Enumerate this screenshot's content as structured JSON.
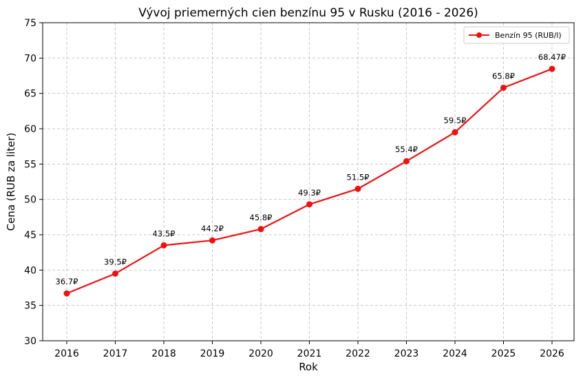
{
  "chart_data": {
    "type": "line",
    "title": "Vývoj priemerných cien benzínu 95 v Rusku (2016 - 2026)",
    "xlabel": "Rok",
    "ylabel": "Cena (RUB za liter)",
    "x": [
      2016,
      2017,
      2018,
      2019,
      2020,
      2021,
      2022,
      2023,
      2024,
      2025,
      2026
    ],
    "ylim": [
      30,
      75
    ],
    "yticks": [
      30,
      35,
      40,
      45,
      50,
      55,
      60,
      65,
      70,
      75
    ],
    "grid": true,
    "legend_position": "top-right",
    "series": [
      {
        "name": "Benzín 95 (RUB/l)",
        "color": "#ee1111",
        "marker": "circle",
        "values": [
          36.7,
          39.5,
          43.5,
          44.2,
          45.8,
          49.3,
          51.5,
          55.4,
          59.5,
          65.8,
          68.47
        ],
        "data_labels": [
          "36.7₽",
          "39.5₽",
          "43.5₽",
          "44.2₽",
          "45.8₽",
          "49.3₽",
          "51.5₽",
          "55.4₽",
          "59.5₽",
          "65.8₽",
          "68.47₽"
        ]
      }
    ]
  }
}
